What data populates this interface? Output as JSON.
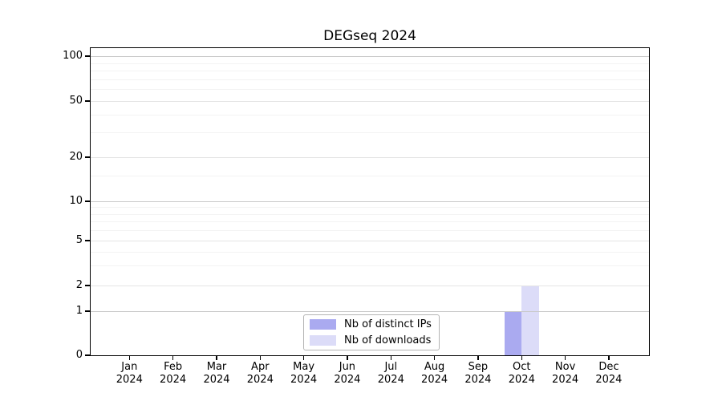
{
  "chart_data": {
    "type": "bar",
    "title": "DEGseq 2024",
    "year": "2024",
    "categories": [
      "Jan",
      "Feb",
      "Mar",
      "Apr",
      "May",
      "Jun",
      "Jul",
      "Aug",
      "Sep",
      "Oct",
      "Nov",
      "Dec"
    ],
    "x_tick_labels": [
      {
        "month": "Jan",
        "year": "2024"
      },
      {
        "month": "Feb",
        "year": "2024"
      },
      {
        "month": "Mar",
        "year": "2024"
      },
      {
        "month": "Apr",
        "year": "2024"
      },
      {
        "month": "May",
        "year": "2024"
      },
      {
        "month": "Jun",
        "year": "2024"
      },
      {
        "month": "Jul",
        "year": "2024"
      },
      {
        "month": "Aug",
        "year": "2024"
      },
      {
        "month": "Sep",
        "year": "2024"
      },
      {
        "month": "Oct",
        "year": "2024"
      },
      {
        "month": "Nov",
        "year": "2024"
      },
      {
        "month": "Dec",
        "year": "2024"
      }
    ],
    "series": [
      {
        "name": "Nb of distinct IPs",
        "color": "#aaaaf0",
        "values": [
          0,
          0,
          0,
          0,
          0,
          0,
          0,
          0,
          0,
          1,
          0,
          0
        ]
      },
      {
        "name": "Nb of downloads",
        "color": "#dcdcf8",
        "values": [
          0,
          0,
          0,
          0,
          0,
          0,
          0,
          0,
          0,
          2,
          0,
          0
        ]
      }
    ],
    "y_ticks": [
      0,
      1,
      2,
      5,
      10,
      20,
      50,
      100
    ],
    "y_minor_gridlines": [
      3,
      4,
      6,
      7,
      8,
      9,
      15,
      30,
      40,
      60,
      70,
      80,
      90
    ],
    "ylim": [
      0,
      100
    ],
    "y_scale": "log-like (symlog, linear below 1)",
    "grid": "horizontal",
    "legend_position": "inside-bottom-center",
    "colors": {
      "axis": "#000000",
      "power_gridline": "#c9c9c9",
      "major_gridline": "#e4e4e4",
      "minor_gridline": "#f3f3f3",
      "legend_border": "#b4b4b4",
      "background": "#ffffff"
    }
  }
}
